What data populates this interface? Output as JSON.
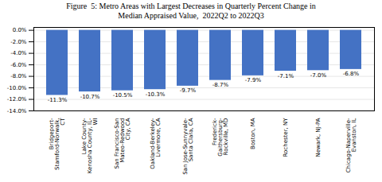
{
  "chart_data": {
    "type": "bar",
    "title": "Figure  5: Metro Areas with Largest Decreases in Quarterly Percent Change in\nMedian Appraised Value,  2022Q2 to 2022Q3",
    "categories": [
      "Bridgeport-\nStamford-Norwalk,\nCT",
      "Lake County-\nKenosha County, IL-\nWI",
      "San Francisco-San\nMateo-Redwood\nCity, CA",
      "Oakland-Berkeley-\nLivermore, CA",
      "San Jose-Sunnyvale-\nSanta Clara, CA",
      "Frederick-\nGaithersburg-\nRockville, MD",
      "Boston, MA",
      "Rochester, NY",
      "Newark, NJ-PA",
      "Chicago-Naperville-\nEvanston, IL"
    ],
    "values": [
      -11.3,
      -10.7,
      -10.5,
      -10.3,
      -9.7,
      -8.7,
      -7.9,
      -7.1,
      -7.0,
      -6.8
    ],
    "value_labels": [
      "-11.3%",
      "-10.7%",
      "-10.5%",
      "-10.3%",
      "-9.7%",
      "-8.7%",
      "-7.9%",
      "-7.1%",
      "-7.0%",
      "-6.8%"
    ],
    "data_labels": true,
    "color": "#4472C4",
    "ylim": [
      -14.0,
      0.5
    ],
    "yticks": [
      {
        "value": 0.0,
        "label": "0.0%"
      },
      {
        "value": -2.0,
        "label": "-2.0%"
      },
      {
        "value": -4.0,
        "label": "-4.0%"
      },
      {
        "value": -6.0,
        "label": "-6.0%"
      },
      {
        "value": -8.0,
        "label": "-8.0%"
      },
      {
        "value": -10.0,
        "label": "-10.0%"
      },
      {
        "value": -12.0,
        "label": "-12.0%"
      },
      {
        "value": -14.0,
        "label": "-14.0%"
      }
    ],
    "grid": true
  }
}
